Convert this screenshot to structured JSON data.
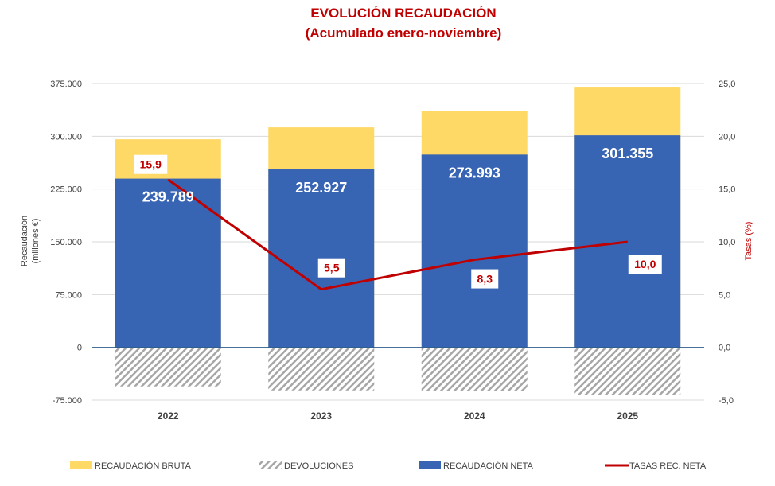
{
  "chart_data": {
    "type": "bar",
    "stacked": true,
    "title": "EVOLUCIÓN RECAUDACIÓN",
    "subtitle": "(Acumulado enero-noviembre)",
    "categories": [
      "2022",
      "2023",
      "2024",
      "2025"
    ],
    "ylabel": "Recaudación (millones €)",
    "ylabel_lines": [
      "Recaudación",
      "(millones €)"
    ],
    "y2label": "Tasas (%)",
    "ylim": [
      -75000,
      375000
    ],
    "y2lim": [
      -5,
      25
    ],
    "yticks": [
      "-75.000",
      "0",
      "75.000",
      "150.000",
      "225.000",
      "300.000",
      "375.000"
    ],
    "yticks_values": [
      -75000,
      0,
      75000,
      150000,
      225000,
      300000,
      375000
    ],
    "y2ticks": [
      "-5,0",
      "0,0",
      "5,0",
      "10,0",
      "15,0",
      "20,0",
      "25,0"
    ],
    "y2ticks_values": [
      -5,
      0,
      5,
      10,
      15,
      20,
      25
    ],
    "grid": true,
    "legend_position": "bottom",
    "series": [
      {
        "name": "RECAUDACIÓN BRUTA",
        "type": "bar",
        "color": "#ffd966",
        "values": [
          295700,
          312700,
          336500,
          369300
        ]
      },
      {
        "name": "DEVOLUCIONES",
        "type": "bar-hatched",
        "color": "#a6a6a6",
        "values": [
          -55500,
          -61200,
          -62300,
          -68000
        ]
      },
      {
        "name": "RECAUDACIÓN NETA",
        "type": "bar",
        "color": "#3864b4",
        "values": [
          239789,
          252927,
          273993,
          301355
        ],
        "labels": [
          "239.789",
          "252.927",
          "273.993",
          "301.355"
        ]
      },
      {
        "name": "TASAS REC. NETA",
        "type": "line",
        "axis": "right",
        "color": "#c00000",
        "values": [
          15.9,
          5.5,
          8.3,
          10.0
        ],
        "labels": [
          "15,9",
          "5,5",
          "8,3",
          "10,0"
        ]
      }
    ]
  }
}
